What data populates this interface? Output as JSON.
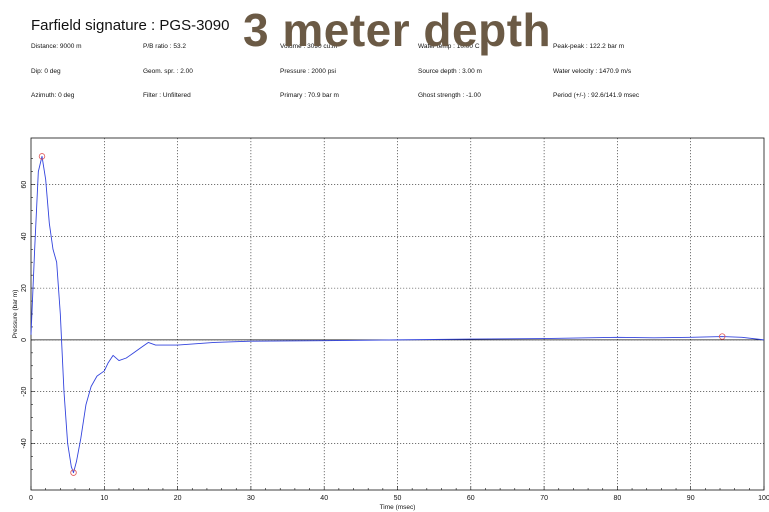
{
  "header": {
    "title": "Farfield signature : PGS-3090",
    "overlay_title": "3 meter depth"
  },
  "params": [
    {
      "text": "Distance: 9000 m"
    },
    {
      "text": "P/B ratio : 53.2"
    },
    {
      "text": "Volume : 3090 cu.in"
    },
    {
      "text": "Water temp : 10.00 C"
    },
    {
      "text": "Peak-peak : 122.2 bar m"
    },
    {
      "text": "Dip: 0 deg"
    },
    {
      "text": "Geom. spr. : 2.00"
    },
    {
      "text": "Pressure : 2000 psi"
    },
    {
      "text": "Source depth : 3.00 m"
    },
    {
      "text": "Water velocity : 1470.9 m/s"
    },
    {
      "text": "Azimuth: 0 deg"
    },
    {
      "text": "Filter : Unfiltered"
    },
    {
      "text": "Primary : 70.9 bar m"
    },
    {
      "text": "Ghost strength : -1.00"
    },
    {
      "text": "Period (+/-) : 92.6/141.9 msec"
    }
  ],
  "chart_data": {
    "type": "line",
    "xlabel": "Time (msec)",
    "ylabel": "Pressure (bar m)",
    "xlim": [
      0,
      100
    ],
    "ylim": [
      -58,
      78
    ],
    "xticks": [
      0,
      10,
      20,
      30,
      40,
      50,
      60,
      70,
      80,
      90,
      100
    ],
    "yticks": [
      -40,
      -20,
      0,
      20,
      40,
      60
    ],
    "grid": true,
    "series": [
      {
        "color": "#3344dd",
        "x": [
          0,
          0.5,
          1.0,
          1.5,
          2.0,
          2.5,
          3.0,
          3.5,
          4.0,
          4.5,
          5.0,
          5.5,
          5.8,
          6.2,
          6.8,
          7.5,
          8.2,
          9.0,
          10.0,
          10.5,
          11.2,
          12.0,
          13.0,
          14.0,
          15.0,
          16.0,
          17.0,
          20.0,
          25.0,
          30.0,
          40.0,
          50.0,
          60.0,
          70.0,
          80.0,
          85.0,
          90.0,
          94.3,
          97.0,
          100.0
        ],
        "y": [
          2,
          35,
          65,
          70.9,
          62,
          45,
          35,
          30,
          10,
          -20,
          -40,
          -49,
          -51.3,
          -47,
          -38,
          -25,
          -18,
          -14,
          -12,
          -9,
          -6,
          -8,
          -7,
          -5,
          -3,
          -1,
          -2,
          -2,
          -1,
          -0.5,
          -0.3,
          0,
          0.3,
          0.5,
          1,
          0.8,
          1,
          1.3,
          1,
          0
        ]
      }
    ],
    "markers": [
      {
        "x": 1.5,
        "y": 70.9,
        "color": "#e05555"
      },
      {
        "x": 5.8,
        "y": -51.3,
        "color": "#e05555"
      },
      {
        "x": 94.3,
        "y": 1.3,
        "color": "#e05555"
      }
    ]
  }
}
